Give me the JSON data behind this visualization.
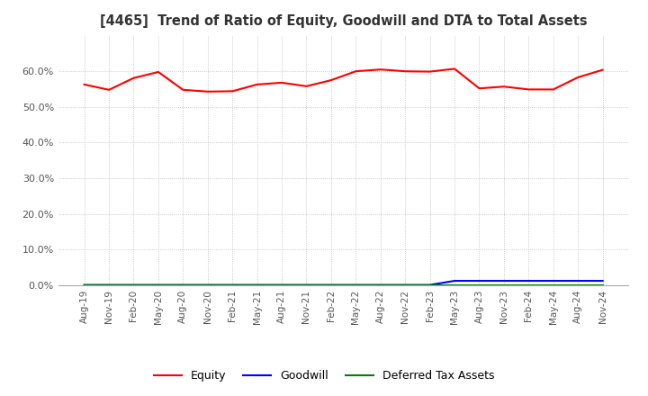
{
  "title": "[4465]  Trend of Ratio of Equity, Goodwill and DTA to Total Assets",
  "x_labels": [
    "Aug-19",
    "Nov-19",
    "Feb-20",
    "May-20",
    "Aug-20",
    "Nov-20",
    "Feb-21",
    "May-21",
    "Aug-21",
    "Nov-21",
    "Feb-22",
    "May-22",
    "Aug-22",
    "Nov-22",
    "Feb-23",
    "May-23",
    "Aug-23",
    "Nov-23",
    "Feb-24",
    "May-24",
    "Aug-24",
    "Nov-24"
  ],
  "equity": [
    0.563,
    0.548,
    0.581,
    0.598,
    0.548,
    0.543,
    0.544,
    0.563,
    0.568,
    0.558,
    0.575,
    0.6,
    0.605,
    0.6,
    0.599,
    0.607,
    0.552,
    0.557,
    0.549,
    0.549,
    0.583,
    0.604
  ],
  "goodwill": [
    0.0005,
    0.0005,
    0.0005,
    0.0005,
    0.0005,
    0.0005,
    0.0005,
    0.0005,
    0.0005,
    0.0005,
    0.0005,
    0.0005,
    0.0005,
    0.0005,
    0.0005,
    0.012,
    0.012,
    0.012,
    0.012,
    0.012,
    0.012,
    0.012
  ],
  "dta": [
    0.0002,
    0.0002,
    0.0002,
    0.0002,
    0.0002,
    0.0002,
    0.0002,
    0.0002,
    0.0002,
    0.0002,
    0.0002,
    0.0002,
    0.0002,
    0.0002,
    0.0002,
    0.0002,
    0.0002,
    0.0002,
    0.0002,
    0.0002,
    0.0002,
    0.0002
  ],
  "equity_color": "#ff0000",
  "goodwill_color": "#0000ff",
  "dta_color": "#008000",
  "ylim": [
    0.0,
    0.7
  ],
  "yticks": [
    0.0,
    0.1,
    0.2,
    0.3,
    0.4,
    0.5,
    0.6
  ],
  "background_color": "#ffffff",
  "plot_bg_color": "#ffffff",
  "grid_color": "#bbbbbb",
  "title_color": "#333333",
  "legend_labels": [
    "Equity",
    "Goodwill",
    "Deferred Tax Assets"
  ]
}
